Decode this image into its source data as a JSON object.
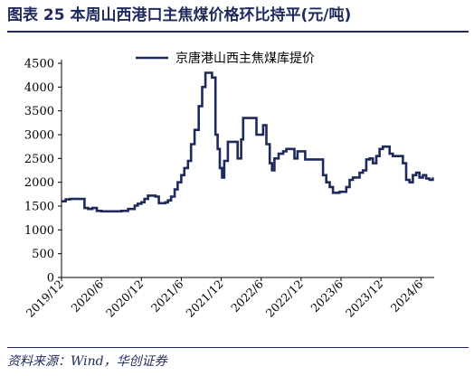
{
  "figure": {
    "title": "图表 25  本周山西港口主焦煤价格环比持平(元/吨)",
    "source": "资料来源：Wind，华创证券"
  },
  "chart_data": {
    "type": "line",
    "title": "",
    "xlabel": "",
    "ylabel": "",
    "ylim": [
      0,
      4500
    ],
    "yticks": [
      0,
      500,
      1000,
      1500,
      2000,
      2500,
      3000,
      3500,
      4000,
      4500
    ],
    "xlim": [
      "2019-12",
      "2024-08"
    ],
    "xticks": [
      "2019/12",
      "2020/6",
      "2020/12",
      "2021/6",
      "2021/12",
      "2022/6",
      "2022/12",
      "2023/6",
      "2023/12",
      "2024/6"
    ],
    "grid": false,
    "legend": "top",
    "color": "#1f2a5c",
    "series": [
      {
        "name": "京唐港山西主焦煤库提价",
        "x": [
          "2019-12-01",
          "2019-12-20",
          "2020-01-10",
          "2020-02-01",
          "2020-02-20",
          "2020-03-15",
          "2020-04-01",
          "2020-04-20",
          "2020-05-10",
          "2020-06-01",
          "2020-07-01",
          "2020-08-01",
          "2020-09-01",
          "2020-10-01",
          "2020-11-01",
          "2020-11-15",
          "2020-12-01",
          "2020-12-15",
          "2021-01-01",
          "2021-01-20",
          "2021-02-05",
          "2021-02-20",
          "2021-03-10",
          "2021-03-20",
          "2021-04-01",
          "2021-04-15",
          "2021-05-01",
          "2021-05-15",
          "2021-06-01",
          "2021-06-15",
          "2021-07-01",
          "2021-07-15",
          "2021-08-01",
          "2021-08-20",
          "2021-09-05",
          "2021-09-20",
          "2021-10-05",
          "2021-10-20",
          "2021-11-05",
          "2021-11-15",
          "2021-11-25",
          "2021-12-05",
          "2021-12-15",
          "2022-01-01",
          "2022-01-15",
          "2022-02-01",
          "2022-02-15",
          "2022-03-01",
          "2022-03-10",
          "2022-03-20",
          "2022-04-10",
          "2022-05-01",
          "2022-05-10",
          "2022-05-25",
          "2022-06-10",
          "2022-06-25",
          "2022-07-10",
          "2022-07-20",
          "2022-08-01",
          "2022-08-20",
          "2022-09-10",
          "2022-09-25",
          "2022-10-10",
          "2022-11-01",
          "2022-11-15",
          "2022-12-01",
          "2022-12-20",
          "2023-01-10",
          "2023-02-01",
          "2023-02-20",
          "2023-03-10",
          "2023-03-25",
          "2023-04-10",
          "2023-04-25",
          "2023-05-10",
          "2023-05-25",
          "2023-06-10",
          "2023-06-25",
          "2023-07-10",
          "2023-07-25",
          "2023-08-10",
          "2023-08-25",
          "2023-09-10",
          "2023-09-25",
          "2023-10-10",
          "2023-10-25",
          "2023-11-10",
          "2023-11-25",
          "2023-12-10",
          "2023-12-25",
          "2024-01-10",
          "2024-01-25",
          "2024-02-10",
          "2024-02-25",
          "2024-03-10",
          "2024-03-25",
          "2024-04-10",
          "2024-04-25",
          "2024-05-10",
          "2024-05-25",
          "2024-06-10",
          "2024-06-25",
          "2024-07-10",
          "2024-07-25"
        ],
        "values": [
          1600,
          1640,
          1650,
          1650,
          1650,
          1460,
          1440,
          1460,
          1400,
          1390,
          1390,
          1390,
          1400,
          1440,
          1510,
          1550,
          1580,
          1650,
          1720,
          1720,
          1700,
          1560,
          1560,
          1580,
          1620,
          1700,
          1850,
          2000,
          2150,
          2300,
          2450,
          2800,
          3100,
          3600,
          4000,
          4300,
          4300,
          4200,
          3000,
          2700,
          2300,
          2100,
          2450,
          2850,
          2850,
          2850,
          2500,
          2900,
          3350,
          3350,
          3350,
          3350,
          3000,
          3000,
          3200,
          2800,
          2400,
          2250,
          2500,
          2600,
          2650,
          2700,
          2700,
          2500,
          2650,
          2650,
          2480,
          2480,
          2480,
          2480,
          2150,
          2000,
          1900,
          1780,
          1780,
          1800,
          1800,
          1900,
          2050,
          2100,
          2100,
          2200,
          2250,
          2480,
          2500,
          2400,
          2550,
          2700,
          2750,
          2750,
          2600,
          2550,
          2550,
          2550,
          2400,
          2050,
          2000,
          2150,
          2200,
          2100,
          2150,
          2080,
          2050,
          2100
        ]
      }
    ]
  }
}
